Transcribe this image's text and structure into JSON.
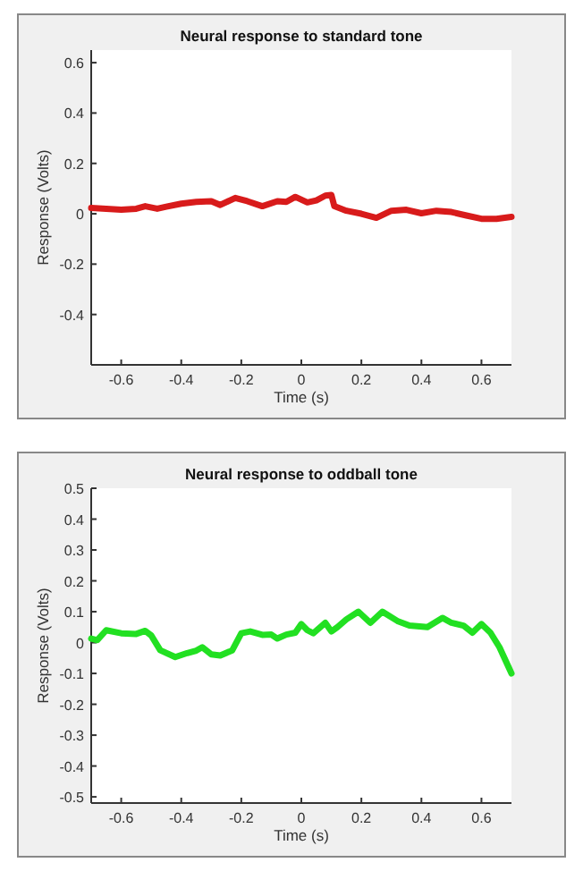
{
  "chart_data": [
    {
      "type": "line",
      "title": "Neural response to standard tone",
      "xlabel": "Time (s)",
      "ylabel": "Response (Volts)",
      "xlim": [
        -0.7,
        0.7
      ],
      "ylim": [
        -0.6,
        0.65
      ],
      "xticks": [
        -0.6,
        -0.4,
        -0.2,
        0,
        0.2,
        0.4,
        0.6
      ],
      "yticks": [
        -0.4,
        -0.2,
        0,
        0.2,
        0.4,
        0.6
      ],
      "series": [
        {
          "color": "#d81b1b",
          "x": [
            -0.7,
            -0.65,
            -0.6,
            -0.55,
            -0.52,
            -0.48,
            -0.45,
            -0.4,
            -0.35,
            -0.3,
            -0.27,
            -0.22,
            -0.18,
            -0.13,
            -0.08,
            -0.05,
            -0.02,
            0.02,
            0.05,
            0.08,
            0.1,
            0.11,
            0.15,
            0.2,
            0.25,
            0.3,
            0.35,
            0.4,
            0.45,
            0.5,
            0.55,
            0.6,
            0.65,
            0.7
          ],
          "values": [
            0.023,
            0.02,
            0.016,
            0.02,
            0.03,
            0.02,
            0.028,
            0.04,
            0.047,
            0.05,
            0.035,
            0.063,
            0.05,
            0.03,
            0.05,
            0.047,
            0.067,
            0.045,
            0.053,
            0.072,
            0.075,
            0.03,
            0.012,
            0,
            -0.016,
            0.012,
            0.016,
            0.002,
            0.012,
            0.007,
            -0.007,
            -0.02,
            -0.02,
            -0.012
          ]
        }
      ]
    },
    {
      "type": "line",
      "title": "Neural response to oddball tone",
      "xlabel": "Time (s)",
      "ylabel": "Response (Volts)",
      "xlim": [
        -0.7,
        0.7
      ],
      "ylim": [
        -0.52,
        0.5
      ],
      "xticks": [
        -0.6,
        -0.4,
        -0.2,
        0,
        0.2,
        0.4,
        0.6
      ],
      "yticks": [
        -0.5,
        -0.4,
        -0.3,
        -0.2,
        -0.1,
        0,
        0.1,
        0.2,
        0.3,
        0.4,
        0.5
      ],
      "series": [
        {
          "color": "#22e022",
          "x": [
            -0.7,
            -0.68,
            -0.65,
            -0.6,
            -0.55,
            -0.52,
            -0.5,
            -0.47,
            -0.42,
            -0.38,
            -0.35,
            -0.33,
            -0.3,
            -0.27,
            -0.23,
            -0.2,
            -0.17,
            -0.13,
            -0.1,
            -0.08,
            -0.05,
            -0.02,
            0,
            0.02,
            0.04,
            0.08,
            0.1,
            0.12,
            0.15,
            0.19,
            0.23,
            0.27,
            0.32,
            0.36,
            0.42,
            0.47,
            0.5,
            0.54,
            0.57,
            0.6,
            0.63,
            0.66,
            0.7
          ],
          "values": [
            0.013,
            0.008,
            0.04,
            0.03,
            0.028,
            0.038,
            0.023,
            -0.025,
            -0.047,
            -0.034,
            -0.026,
            -0.015,
            -0.038,
            -0.042,
            -0.025,
            0.03,
            0.036,
            0.025,
            0.026,
            0.013,
            0.026,
            0.032,
            0.06,
            0.04,
            0.03,
            0.064,
            0.036,
            0.05,
            0.075,
            0.1,
            0.064,
            0.1,
            0.07,
            0.055,
            0.05,
            0.08,
            0.064,
            0.055,
            0.032,
            0.06,
            0.032,
            -0.015,
            -0.1
          ]
        }
      ]
    }
  ]
}
